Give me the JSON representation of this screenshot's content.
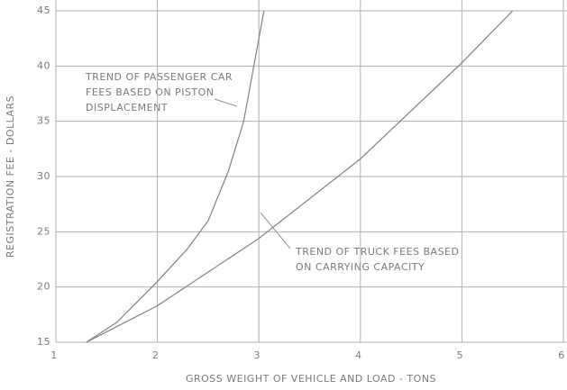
{
  "chart_data": {
    "type": "line",
    "xlabel": "GROSS WEIGHT OF VEHICLE AND LOAD - TONS",
    "ylabel": "REGISTRATION FEE - DOLLARS",
    "xlim": [
      1,
      6
    ],
    "ylim": [
      15,
      45
    ],
    "xticks": [
      1,
      2,
      3,
      4,
      5,
      6
    ],
    "yticks": [
      15,
      20,
      25,
      30,
      35,
      40,
      45
    ],
    "grid": true,
    "series": [
      {
        "name": "Passenger car fees",
        "color": "#808080",
        "x": [
          1.3,
          1.6,
          2,
          2.3,
          2.5,
          2.7,
          2.85,
          2.95,
          3.05
        ],
        "values": [
          15,
          16.8,
          20.5,
          23.5,
          26,
          30.5,
          35,
          40,
          45
        ]
      },
      {
        "name": "Truck fees",
        "color": "#808080",
        "x": [
          1.3,
          2,
          3,
          4,
          5,
          5.5
        ],
        "values": [
          15,
          18.3,
          24.4,
          31.6,
          40.3,
          45
        ]
      }
    ],
    "annotations": [
      {
        "lines": [
          "TREND OF PASSENGER CAR",
          "FEES BASED ON PISTON",
          "DISPLACEMENT"
        ]
      },
      {
        "lines": [
          "TREND OF TRUCK FEES BASED",
          "ON CARRYING CAPACITY"
        ]
      }
    ]
  }
}
